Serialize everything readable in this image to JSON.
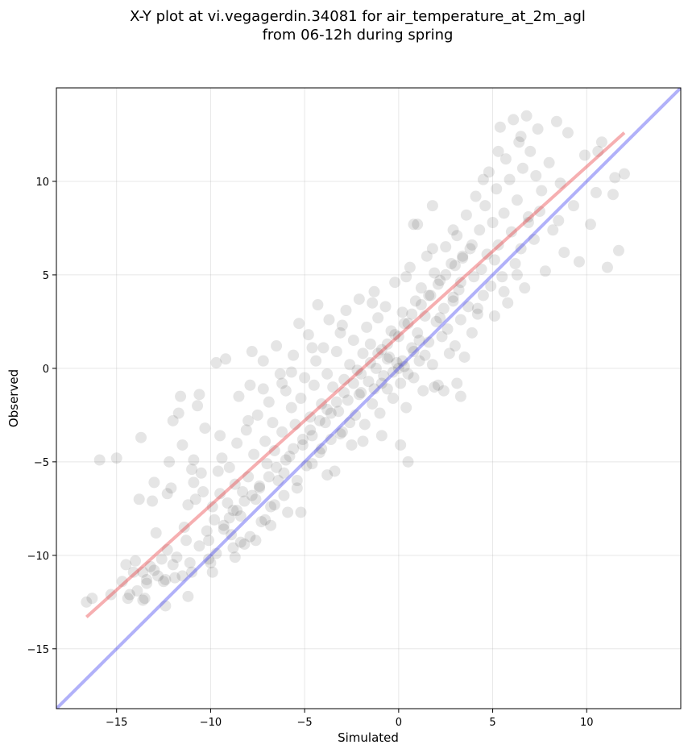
{
  "chart_data": {
    "type": "scatter",
    "title_line1": "X-Y plot at vi.vegagerdin.34081 for air_temperature_at_2m_agl",
    "title_line2": "from 06-12h during spring",
    "xlabel": "Simulated",
    "ylabel": "Observed",
    "xlim": [
      -18.2,
      15.0
    ],
    "ylim": [
      -18.2,
      15.0
    ],
    "xticks": [
      -15,
      -10,
      -5,
      0,
      5,
      10
    ],
    "yticks": [
      -15,
      -10,
      -5,
      0,
      5,
      10
    ],
    "xtick_labels": [
      "−15",
      "−10",
      "−5",
      "0",
      "5",
      "10"
    ],
    "ytick_labels": [
      "−15",
      "−10",
      "−5",
      "0",
      "5",
      "10"
    ],
    "grid": true,
    "point_color": "#000000",
    "point_alpha": 0.1,
    "regression_line": {
      "x": [
        -16.6,
        12.0
      ],
      "y": [
        -13.3,
        12.6
      ],
      "color": "#e8363b"
    },
    "identity_line": {
      "x": [
        -18.2,
        15.0
      ],
      "y": [
        -18.2,
        15.0
      ],
      "color": "#3b3bf0"
    },
    "points": [
      [
        -16.6,
        -12.5
      ],
      [
        -16.3,
        -12.3
      ],
      [
        -15.9,
        -4.9
      ],
      [
        -15.0,
        -4.8
      ],
      [
        -15.3,
        -12.1
      ],
      [
        -14.7,
        -11.4
      ],
      [
        -14.5,
        -10.5
      ],
      [
        -14.3,
        -12.1
      ],
      [
        -14.0,
        -10.3
      ],
      [
        -13.9,
        -11.9
      ],
      [
        -13.8,
        -7.0
      ],
      [
        -13.7,
        -3.7
      ],
      [
        -13.6,
        -10.9
      ],
      [
        -13.5,
        -12.3
      ],
      [
        -13.4,
        -11.5
      ],
      [
        -13.2,
        -10.6
      ],
      [
        -13.1,
        -7.1
      ],
      [
        -13.0,
        -6.1
      ],
      [
        -12.9,
        -8.8
      ],
      [
        -12.8,
        -11.1
      ],
      [
        -12.6,
        -10.2
      ],
      [
        -12.4,
        -11.3
      ],
      [
        -12.3,
        -9.7
      ],
      [
        -12.2,
        -5.0
      ],
      [
        -12.1,
        -6.4
      ],
      [
        -12.0,
        -2.8
      ],
      [
        -11.9,
        -11.2
      ],
      [
        -11.8,
        -10.1
      ],
      [
        -11.7,
        -2.4
      ],
      [
        -11.6,
        -1.5
      ],
      [
        -11.5,
        -4.1
      ],
      [
        -11.4,
        -8.5
      ],
      [
        -11.3,
        -9.2
      ],
      [
        -11.2,
        -7.3
      ],
      [
        -11.1,
        -10.4
      ],
      [
        -11.0,
        -5.4
      ],
      [
        -10.9,
        -6.1
      ],
      [
        -10.8,
        -7.0
      ],
      [
        -10.7,
        -2.0
      ],
      [
        -10.6,
        -1.4
      ],
      [
        -10.5,
        -5.6
      ],
      [
        -10.4,
        -6.6
      ],
      [
        -10.3,
        -3.2
      ],
      [
        -10.2,
        -8.7
      ],
      [
        -10.1,
        -9.2
      ],
      [
        -10.0,
        -10.4
      ],
      [
        -9.9,
        -7.4
      ],
      [
        -9.8,
        -8.1
      ],
      [
        -9.7,
        0.3
      ],
      [
        -9.6,
        -5.5
      ],
      [
        -9.5,
        -6.7
      ],
      [
        -9.4,
        -4.8
      ],
      [
        -9.3,
        -8.4
      ],
      [
        -9.2,
        0.5
      ],
      [
        -9.1,
        -7.2
      ],
      [
        -9.0,
        -5.3
      ],
      [
        -8.9,
        -8.9
      ],
      [
        -8.8,
        -7.6
      ],
      [
        -8.7,
        -6.2
      ],
      [
        -8.6,
        -4.0
      ],
      [
        -8.5,
        -1.5
      ],
      [
        -8.4,
        -7.9
      ],
      [
        -8.3,
        -6.6
      ],
      [
        -8.2,
        -9.4
      ],
      [
        -8.1,
        -3.3
      ],
      [
        -8.0,
        -5.8
      ],
      [
        -7.9,
        -0.9
      ],
      [
        -7.8,
        0.9
      ],
      [
        -7.7,
        -4.6
      ],
      [
        -7.6,
        -7.0
      ],
      [
        -7.5,
        -2.5
      ],
      [
        -7.4,
        -6.3
      ],
      [
        -7.3,
        -8.2
      ],
      [
        -7.2,
        0.4
      ],
      [
        -7.1,
        -3.9
      ],
      [
        -7.0,
        -5.1
      ],
      [
        -6.9,
        -1.8
      ],
      [
        -6.8,
        -7.4
      ],
      [
        -6.7,
        -2.9
      ],
      [
        -6.6,
        -4.4
      ],
      [
        -6.5,
        1.2
      ],
      [
        -6.4,
        -6.0
      ],
      [
        -6.3,
        -0.3
      ],
      [
        -6.2,
        -3.4
      ],
      [
        -6.1,
        -5.6
      ],
      [
        -6.0,
        -1.2
      ],
      [
        -5.9,
        -7.7
      ],
      [
        -5.8,
        -4.7
      ],
      [
        -5.7,
        -2.1
      ],
      [
        -5.6,
        0.7
      ],
      [
        -5.5,
        -3.0
      ],
      [
        -5.4,
        -6.4
      ],
      [
        -5.3,
        2.4
      ],
      [
        -5.2,
        -1.6
      ],
      [
        -5.1,
        -4.1
      ],
      [
        -5.0,
        -0.5
      ],
      [
        -4.9,
        -5.2
      ],
      [
        -4.8,
        1.8
      ],
      [
        -4.7,
        -2.6
      ],
      [
        -4.6,
        -3.6
      ],
      [
        -4.5,
        -0.9
      ],
      [
        -4.4,
        0.4
      ],
      [
        -4.3,
        3.4
      ],
      [
        -4.2,
        -4.5
      ],
      [
        -4.1,
        -1.9
      ],
      [
        -4.0,
        1.1
      ],
      [
        -3.9,
        -2.9
      ],
      [
        -3.8,
        -0.3
      ],
      [
        -3.7,
        2.6
      ],
      [
        -3.6,
        -3.8
      ],
      [
        -3.5,
        -1.0
      ],
      [
        -3.4,
        -5.5
      ],
      [
        -3.3,
        0.9
      ],
      [
        -3.2,
        -2.3
      ],
      [
        -3.1,
        1.9
      ],
      [
        -3.0,
        -3.4
      ],
      [
        -2.9,
        -0.6
      ],
      [
        -2.8,
        3.1
      ],
      [
        -2.7,
        -1.7
      ],
      [
        -2.6,
        0.2
      ],
      [
        -2.5,
        -4.1
      ],
      [
        -2.4,
        1.5
      ],
      [
        -2.3,
        -2.5
      ],
      [
        -2.2,
        -0.1
      ],
      [
        -2.1,
        3.7
      ],
      [
        -2.0,
        -1.3
      ],
      [
        -1.9,
        0.8
      ],
      [
        -1.8,
        -3.0
      ],
      [
        -1.7,
        2.2
      ],
      [
        -1.6,
        -0.7
      ],
      [
        -1.5,
        1.3
      ],
      [
        -1.4,
        -1.9
      ],
      [
        -1.3,
        4.1
      ],
      [
        -1.2,
        0.0
      ],
      [
        -1.1,
        2.7
      ],
      [
        -1.0,
        -2.4
      ],
      [
        -0.9,
        1.0
      ],
      [
        -0.8,
        -0.4
      ],
      [
        -0.7,
        3.3
      ],
      [
        -0.6,
        -1.1
      ],
      [
        -0.5,
        0.6
      ],
      [
        -0.4,
        2.0
      ],
      [
        -0.3,
        -1.6
      ],
      [
        -0.2,
        4.6
      ],
      [
        -0.1,
        0.3
      ],
      [
        0.0,
        1.7
      ],
      [
        0.1,
        -0.8
      ],
      [
        0.2,
        3.0
      ],
      [
        0.3,
        0.1
      ],
      [
        0.4,
        -2.1
      ],
      [
        0.5,
        2.4
      ],
      [
        0.6,
        5.4
      ],
      [
        0.7,
        1.1
      ],
      [
        0.8,
        -0.5
      ],
      [
        0.9,
        3.6
      ],
      [
        1.0,
        1.9
      ],
      [
        1.1,
        0.4
      ],
      [
        1.2,
        4.3
      ],
      [
        1.3,
        -1.2
      ],
      [
        1.4,
        2.8
      ],
      [
        1.5,
        6.0
      ],
      [
        1.6,
        1.4
      ],
      [
        1.7,
        3.9
      ],
      [
        1.8,
        0.2
      ],
      [
        1.9,
        5.1
      ],
      [
        2.0,
        2.5
      ],
      [
        2.1,
        -0.9
      ],
      [
        2.2,
        4.7
      ],
      [
        2.3,
        1.7
      ],
      [
        2.4,
        3.2
      ],
      [
        2.5,
        6.5
      ],
      [
        2.6,
        2.1
      ],
      [
        2.7,
        0.8
      ],
      [
        2.8,
        5.6
      ],
      [
        2.9,
        3.6
      ],
      [
        3.0,
        1.2
      ],
      [
        3.1,
        7.1
      ],
      [
        3.2,
        4.2
      ],
      [
        3.3,
        2.6
      ],
      [
        3.4,
        5.9
      ],
      [
        3.5,
        0.6
      ],
      [
        3.6,
        8.2
      ],
      [
        3.7,
        3.3
      ],
      [
        3.8,
        6.4
      ],
      [
        3.9,
        1.9
      ],
      [
        4.0,
        4.9
      ],
      [
        4.1,
        9.2
      ],
      [
        4.2,
        2.9
      ],
      [
        4.3,
        7.4
      ],
      [
        4.4,
        5.3
      ],
      [
        4.5,
        3.9
      ],
      [
        4.6,
        8.7
      ],
      [
        4.7,
        6.1
      ],
      [
        4.8,
        10.5
      ],
      [
        4.9,
        4.4
      ],
      [
        5.0,
        7.8
      ],
      [
        5.1,
        2.8
      ],
      [
        5.2,
        9.6
      ],
      [
        5.3,
        6.6
      ],
      [
        5.4,
        12.9
      ],
      [
        5.5,
        4.9
      ],
      [
        5.6,
        8.3
      ],
      [
        5.7,
        11.2
      ],
      [
        5.8,
        3.5
      ],
      [
        5.9,
        10.1
      ],
      [
        6.0,
        7.3
      ],
      [
        6.1,
        13.3
      ],
      [
        6.2,
        5.6
      ],
      [
        6.3,
        9.0
      ],
      [
        6.4,
        12.1
      ],
      [
        6.5,
        6.4
      ],
      [
        6.6,
        10.7
      ],
      [
        6.7,
        4.3
      ],
      [
        6.8,
        13.5
      ],
      [
        6.9,
        8.1
      ],
      [
        7.0,
        11.6
      ],
      [
        7.2,
        6.9
      ],
      [
        7.4,
        12.8
      ],
      [
        7.6,
        9.5
      ],
      [
        7.8,
        5.2
      ],
      [
        8.0,
        11.0
      ],
      [
        8.2,
        7.4
      ],
      [
        8.4,
        13.2
      ],
      [
        8.6,
        9.9
      ],
      [
        8.8,
        6.2
      ],
      [
        9.0,
        12.6
      ],
      [
        9.3,
        8.7
      ],
      [
        9.6,
        5.7
      ],
      [
        9.9,
        11.4
      ],
      [
        10.2,
        7.7
      ],
      [
        10.5,
        9.4
      ],
      [
        10.8,
        12.1
      ],
      [
        11.1,
        5.4
      ],
      [
        11.4,
        9.3
      ],
      [
        11.7,
        6.3
      ],
      [
        12.0,
        10.4
      ],
      [
        11.5,
        10.2
      ],
      [
        10.6,
        11.6
      ],
      [
        8.5,
        7.9
      ],
      [
        7.3,
        10.3
      ],
      [
        -9.0,
        -8.0
      ],
      [
        -8.6,
        -7.6
      ],
      [
        -8.2,
        -7.1
      ],
      [
        -7.8,
        -6.8
      ],
      [
        -7.4,
        -6.4
      ],
      [
        -6.9,
        -5.8
      ],
      [
        -6.5,
        -5.3
      ],
      [
        -6.0,
        -4.9
      ],
      [
        -5.6,
        -4.3
      ],
      [
        -5.1,
        -3.8
      ],
      [
        -4.7,
        -3.3
      ],
      [
        -4.2,
        -2.8
      ],
      [
        -3.8,
        -2.2
      ],
      [
        -3.3,
        -1.8
      ],
      [
        -2.9,
        -1.3
      ],
      [
        -2.4,
        -0.8
      ],
      [
        -2.0,
        -0.3
      ],
      [
        -1.5,
        0.3
      ],
      [
        -1.1,
        0.8
      ],
      [
        -0.6,
        1.3
      ],
      [
        -0.2,
        1.8
      ],
      [
        0.3,
        2.4
      ],
      [
        0.7,
        2.9
      ],
      [
        1.2,
        3.4
      ],
      [
        1.6,
        3.9
      ],
      [
        2.1,
        4.5
      ],
      [
        2.5,
        5.0
      ],
      [
        3.0,
        5.5
      ],
      [
        3.4,
        6.0
      ],
      [
        3.9,
        6.6
      ],
      [
        0.0,
        0.0
      ],
      [
        0.2,
        0.4
      ],
      [
        -0.3,
        -0.2
      ],
      [
        0.5,
        -0.3
      ],
      [
        -0.6,
        0.5
      ],
      [
        0.8,
        0.9
      ],
      [
        -0.9,
        -0.8
      ],
      [
        1.1,
        1.5
      ],
      [
        -1.3,
        -1.1
      ],
      [
        1.4,
        0.7
      ],
      [
        -2.1,
        -1.4
      ],
      [
        2.2,
        2.7
      ],
      [
        -2.6,
        -2.9
      ],
      [
        2.9,
        3.8
      ],
      [
        -3.1,
        -3.5
      ],
      [
        3.3,
        4.6
      ],
      [
        -3.6,
        -2.4
      ],
      [
        -4.1,
        -4.3
      ],
      [
        4.2,
        3.2
      ],
      [
        -4.6,
        -5.1
      ],
      [
        5.1,
        5.8
      ],
      [
        -5.4,
        -6.0
      ],
      [
        5.6,
        4.1
      ],
      [
        -6.1,
        -6.8
      ],
      [
        6.3,
        5.0
      ],
      [
        -6.6,
        -7.3
      ],
      [
        6.9,
        7.8
      ],
      [
        -7.1,
        -8.1
      ],
      [
        7.5,
        8.4
      ],
      [
        -7.9,
        -9.0
      ],
      [
        -8.4,
        -9.3
      ],
      [
        -8.8,
        -9.6
      ],
      [
        -9.3,
        -8.6
      ],
      [
        -9.7,
        -9.9
      ],
      [
        -10.1,
        -10.2
      ],
      [
        -10.6,
        -9.5
      ],
      [
        -11.0,
        -10.9
      ],
      [
        -11.5,
        -11.1
      ],
      [
        -12.0,
        -10.5
      ],
      [
        -12.5,
        -11.4
      ],
      [
        -13.0,
        -10.8
      ],
      [
        -13.4,
        -11.3
      ],
      [
        -14.1,
        -10.9
      ],
      [
        -14.4,
        -12.3
      ],
      [
        -8.0,
        -2.8
      ],
      [
        -6.2,
        -0.8
      ],
      [
        -4.6,
        1.1
      ],
      [
        -3.0,
        2.3
      ],
      [
        -1.4,
        3.5
      ],
      [
        0.4,
        4.9
      ],
      [
        1.8,
        6.4
      ],
      [
        2.9,
        7.4
      ],
      [
        4.5,
        10.1
      ],
      [
        5.3,
        11.6
      ],
      [
        6.5,
        12.4
      ],
      [
        -9.5,
        -3.6
      ],
      [
        -10.9,
        -4.9
      ],
      [
        -12.3,
        -6.7
      ],
      [
        -7.2,
        -1.1
      ],
      [
        -5.7,
        -0.2
      ],
      [
        3.1,
        -0.8
      ],
      [
        3.3,
        -1.5
      ],
      [
        2.4,
        -1.2
      ],
      [
        1.9,
        -1.0
      ],
      [
        0.5,
        -5.0
      ],
      [
        0.1,
        -4.1
      ],
      [
        -0.9,
        -3.6
      ],
      [
        -1.9,
        -3.9
      ],
      [
        -3.8,
        -5.7
      ],
      [
        -5.2,
        -7.7
      ],
      [
        -6.8,
        -8.4
      ],
      [
        -7.6,
        -9.2
      ],
      [
        -8.7,
        -10.1
      ],
      [
        -9.9,
        -10.9
      ],
      [
        -11.2,
        -12.2
      ],
      [
        -12.4,
        -12.7
      ],
      [
        -13.6,
        -12.4
      ],
      [
        0.8,
        7.7
      ],
      [
        1.8,
        8.7
      ],
      [
        1.0,
        7.7
      ]
    ]
  }
}
